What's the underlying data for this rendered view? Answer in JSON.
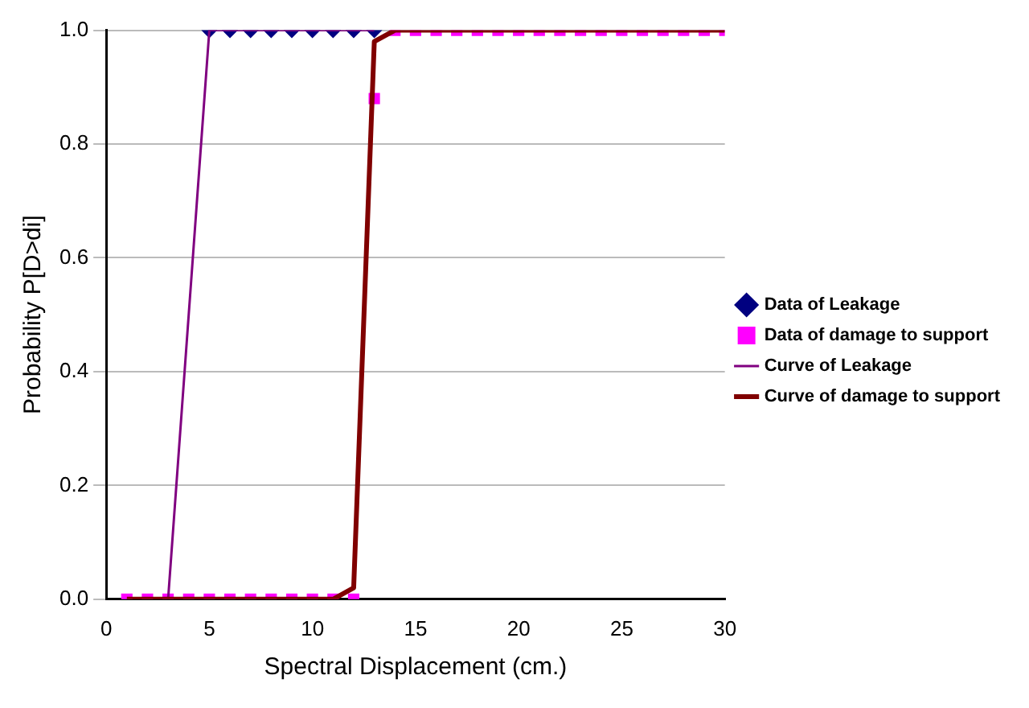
{
  "chart_data": {
    "type": "scatter",
    "xlabel": "Spectral Displacement (cm.)",
    "ylabel": "Probability P[D>di]",
    "xlim": [
      0,
      30
    ],
    "xticks": [
      0,
      5,
      10,
      15,
      20,
      25,
      30
    ],
    "ylim": [
      0,
      1
    ],
    "yticks": [
      {
        "value": 0,
        "label": "0.0"
      },
      {
        "value": 0.2,
        "label": "0.2"
      },
      {
        "value": 0.4,
        "label": "0.4"
      },
      {
        "value": 0.6,
        "label": "0.6"
      },
      {
        "value": 0.8,
        "label": "0.8"
      },
      {
        "value": 1,
        "label": "1.0"
      }
    ],
    "grid": "y",
    "legend": "right",
    "series": [
      {
        "name": "Data of Leakage",
        "type": "scatter",
        "marker": "diamond",
        "color": "#000080",
        "x": [
          5,
          6,
          7,
          8,
          9,
          10,
          11,
          12,
          13
        ],
        "values": [
          1,
          1,
          1,
          1,
          1,
          1,
          1,
          1,
          1
        ]
      },
      {
        "name": "Data of damage to support",
        "type": "scatter",
        "marker": "square",
        "color": "#ff00ff",
        "x": [
          1,
          2,
          3,
          4,
          5,
          6,
          7,
          8,
          9,
          10,
          11,
          12,
          13,
          14,
          15,
          16,
          17,
          18,
          19,
          20,
          21,
          22,
          23,
          24,
          25,
          26,
          27,
          28,
          29,
          30
        ],
        "values": [
          0,
          0,
          0,
          0,
          0,
          0,
          0,
          0,
          0,
          0,
          0,
          0,
          0.88,
          1,
          1,
          1,
          1,
          1,
          1,
          1,
          1,
          1,
          1,
          1,
          1,
          1,
          1,
          1,
          1,
          1
        ]
      },
      {
        "name": "Curve of Leakage",
        "type": "line",
        "marker": "none",
        "color": "#800080",
        "x": [
          3,
          5,
          13
        ],
        "values": [
          0,
          1,
          1
        ]
      },
      {
        "name": "Curve of damage to support",
        "type": "line",
        "marker": "none",
        "color": "#800000",
        "x": [
          1,
          11,
          12,
          13,
          14,
          30
        ],
        "values": [
          0,
          0,
          0.02,
          0.98,
          1,
          1
        ]
      }
    ]
  }
}
